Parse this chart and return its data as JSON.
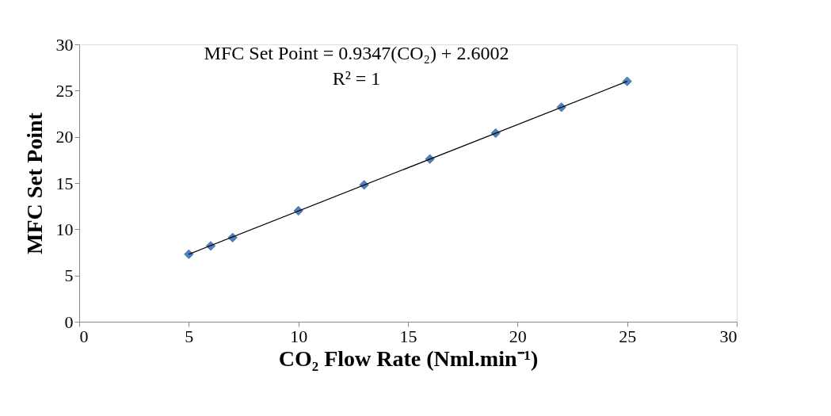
{
  "chart_data": {
    "type": "scatter",
    "xlabel": "CO₂ Flow Rate (Nml.min⁻¹)",
    "ylabel": "MFC Set Point",
    "x": [
      5,
      6,
      7,
      10,
      13,
      16,
      19,
      22,
      25
    ],
    "series": [
      {
        "color": "#4f81bd",
        "marker": "diamond",
        "values": [
          7.3,
          8.2,
          9.1,
          12.0,
          14.8,
          17.6,
          20.4,
          23.2,
          26.0
        ]
      },
      {
        "type": "line",
        "color": "#000000",
        "marker": "none",
        "line_style": "solid",
        "x": [
          5,
          25
        ],
        "values": [
          7.3,
          26.0
        ]
      }
    ],
    "xlim": [
      0,
      30
    ],
    "ylim": [
      0,
      30
    ],
    "xticks": [
      0,
      5,
      10,
      15,
      20,
      25,
      30
    ],
    "yticks": [
      0,
      5,
      10,
      15,
      20,
      25,
      30
    ],
    "annotations": [
      "MFC Set Point = 0.9347(CO₂) + 2.6002",
      "R² = 1"
    ],
    "grid": false
  }
}
